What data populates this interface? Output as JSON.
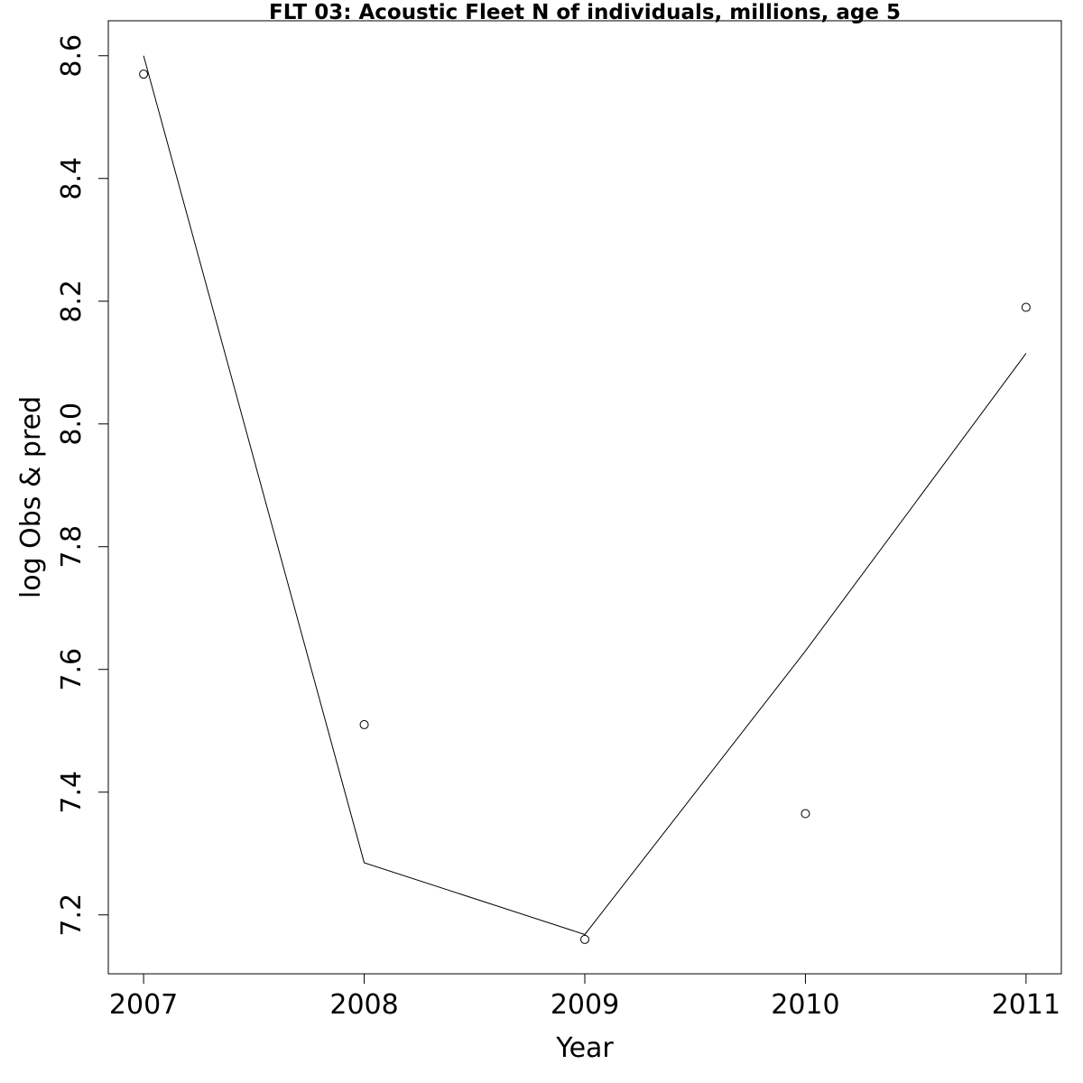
{
  "chart_data": {
    "type": "line",
    "title": "FLT 03: Acoustic Fleet  N of individuals, millions, age 5",
    "xlabel": "Year",
    "ylabel": "log Obs & pred",
    "x_ticks": [
      "2007",
      "2008",
      "2009",
      "2010",
      "2011"
    ],
    "y_ticks": [
      "7.2",
      "7.4",
      "7.6",
      "7.8",
      "8.0",
      "8.2",
      "8.4",
      "8.6"
    ],
    "xlim": [
      2006.84,
      2011.16
    ],
    "ylim": [
      7.104,
      8.657
    ],
    "grid": false,
    "series": [
      {
        "kind": "points",
        "x": [
          2007,
          2008,
          2009,
          2010,
          2011
        ],
        "y": [
          8.57,
          7.51,
          7.16,
          7.365,
          8.19
        ]
      },
      {
        "kind": "line",
        "x": [
          2007,
          2008,
          2009,
          2010,
          2011
        ],
        "y": [
          8.6,
          7.285,
          7.168,
          7.63,
          8.115
        ]
      }
    ]
  }
}
